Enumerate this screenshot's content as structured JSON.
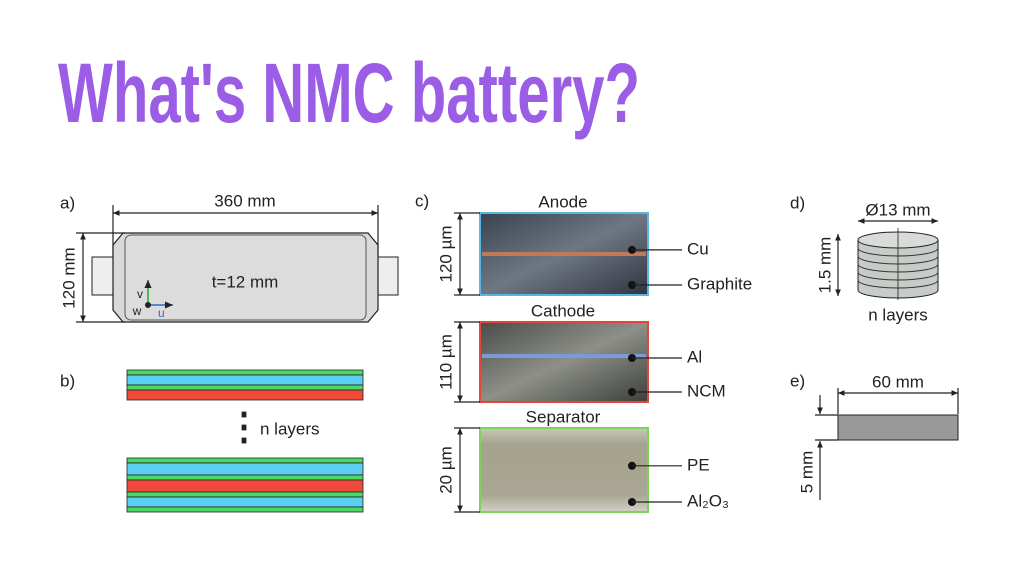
{
  "header": {
    "title": "What's NMC battery?"
  },
  "panel_a": {
    "label": "a)",
    "length": "360 mm",
    "height": "120 mm",
    "thickness": "t=12 mm",
    "axis_v": "v",
    "axis_u": "u",
    "axis_w": "w"
  },
  "panel_b": {
    "label": "b)",
    "layers": "n layers"
  },
  "panel_c": {
    "label": "c)",
    "sections": [
      {
        "title": "Anode",
        "thickness": "120 µm",
        "top": "Cu",
        "bottom": "Graphite"
      },
      {
        "title": "Cathode",
        "thickness": "110 µm",
        "top": "Al",
        "bottom": "NCM"
      },
      {
        "title": "Separator",
        "thickness": "20 µm",
        "top": "PE",
        "bottom": "Al₂O₃"
      }
    ]
  },
  "panel_d": {
    "label": "d)",
    "diameter": "Ø13 mm",
    "height": "1.5 mm",
    "layers": "n layers"
  },
  "panel_e": {
    "label": "e)",
    "length": "60 mm",
    "thickness": "5 mm"
  }
}
